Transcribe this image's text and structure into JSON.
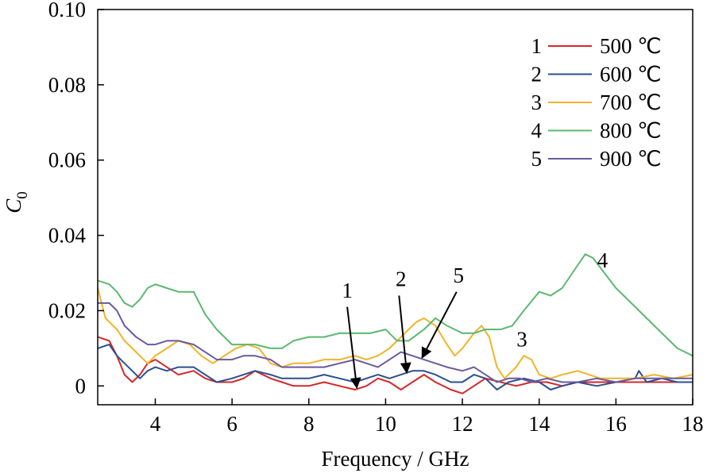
{
  "chart_data": {
    "type": "line",
    "title": "",
    "xlabel": "Frequency / GHz",
    "ylabel": "C0",
    "ylabel_main": "C",
    "ylabel_sub": "0",
    "xlim": [
      2.5,
      18
    ],
    "ylim": [
      -0.005,
      0.1
    ],
    "xticks": [
      4,
      6,
      8,
      10,
      12,
      14,
      16,
      18
    ],
    "xtick_labels": [
      "4",
      "6",
      "8",
      "10",
      "12",
      "14",
      "16",
      "18"
    ],
    "yticks": [
      0,
      0.02,
      0.04,
      0.06,
      0.08,
      0.1
    ],
    "ytick_labels": [
      "0",
      "0.02",
      "0.04",
      "0.06",
      "0.08",
      "0.10"
    ],
    "grid": false,
    "legend_position": "top-right",
    "series": [
      {
        "id": "1",
        "name": "500 ℃",
        "color": "#d62728",
        "points": [
          [
            2.5,
            0.013
          ],
          [
            2.8,
            0.012
          ],
          [
            3.0,
            0.008
          ],
          [
            3.2,
            0.003
          ],
          [
            3.4,
            0.001
          ],
          [
            3.6,
            0.003
          ],
          [
            3.8,
            0.006
          ],
          [
            4.0,
            0.007
          ],
          [
            4.3,
            0.005
          ],
          [
            4.6,
            0.003
          ],
          [
            5.0,
            0.004
          ],
          [
            5.3,
            0.002
          ],
          [
            5.6,
            0.001
          ],
          [
            6.0,
            0.001
          ],
          [
            6.3,
            0.002
          ],
          [
            6.6,
            0.004
          ],
          [
            7.0,
            0.002
          ],
          [
            7.3,
            0.001
          ],
          [
            7.6,
            0.0
          ],
          [
            8.0,
            0.0
          ],
          [
            8.4,
            0.001
          ],
          [
            8.8,
            0.0
          ],
          [
            9.2,
            -0.001
          ],
          [
            9.5,
            0.0
          ],
          [
            9.8,
            0.002
          ],
          [
            10.1,
            0.001
          ],
          [
            10.4,
            -0.001
          ],
          [
            10.7,
            0.001
          ],
          [
            11.0,
            0.003
          ],
          [
            11.3,
            0.001
          ],
          [
            11.7,
            -0.001
          ],
          [
            12.0,
            -0.002
          ],
          [
            12.3,
            0.0
          ],
          [
            12.6,
            0.002
          ],
          [
            13.0,
            0.001
          ],
          [
            13.4,
            0.0
          ],
          [
            13.8,
            0.001
          ],
          [
            14.2,
            0.001
          ],
          [
            14.6,
            0.0
          ],
          [
            15.0,
            0.001
          ],
          [
            15.5,
            0.001
          ],
          [
            16.0,
            0.001
          ],
          [
            16.5,
            0.001
          ],
          [
            17.0,
            0.001
          ],
          [
            17.5,
            0.001
          ],
          [
            18.0,
            0.001
          ]
        ]
      },
      {
        "id": "2",
        "name": "600 ℃",
        "color": "#2b4f8f",
        "points": [
          [
            2.5,
            0.01
          ],
          [
            2.8,
            0.011
          ],
          [
            3.0,
            0.008
          ],
          [
            3.2,
            0.006
          ],
          [
            3.4,
            0.004
          ],
          [
            3.6,
            0.002
          ],
          [
            3.8,
            0.004
          ],
          [
            4.0,
            0.005
          ],
          [
            4.3,
            0.004
          ],
          [
            4.6,
            0.005
          ],
          [
            5.0,
            0.005
          ],
          [
            5.3,
            0.003
          ],
          [
            5.6,
            0.001
          ],
          [
            6.0,
            0.002
          ],
          [
            6.3,
            0.003
          ],
          [
            6.6,
            0.004
          ],
          [
            7.0,
            0.003
          ],
          [
            7.3,
            0.002
          ],
          [
            7.6,
            0.002
          ],
          [
            8.0,
            0.002
          ],
          [
            8.4,
            0.003
          ],
          [
            8.8,
            0.002
          ],
          [
            9.2,
            0.001
          ],
          [
            9.5,
            0.002
          ],
          [
            9.8,
            0.003
          ],
          [
            10.1,
            0.002
          ],
          [
            10.4,
            0.003
          ],
          [
            10.7,
            0.004
          ],
          [
            11.0,
            0.004
          ],
          [
            11.3,
            0.003
          ],
          [
            11.7,
            0.001
          ],
          [
            12.0,
            0.001
          ],
          [
            12.3,
            0.003
          ],
          [
            12.6,
            0.002
          ],
          [
            12.9,
            -0.001
          ],
          [
            13.2,
            0.001
          ],
          [
            13.6,
            0.002
          ],
          [
            14.0,
            0.001
          ],
          [
            14.3,
            -0.001
          ],
          [
            14.6,
            0.0
          ],
          [
            15.0,
            0.001
          ],
          [
            15.5,
            0.0
          ],
          [
            16.0,
            0.001
          ],
          [
            16.5,
            0.002
          ],
          [
            16.6,
            0.004
          ],
          [
            16.8,
            0.001
          ],
          [
            17.2,
            0.002
          ],
          [
            17.6,
            0.001
          ],
          [
            18.0,
            0.001
          ]
        ]
      },
      {
        "id": "3",
        "name": "700 ℃",
        "color": "#f0b429",
        "points": [
          [
            2.5,
            0.026
          ],
          [
            2.7,
            0.018
          ],
          [
            3.0,
            0.015
          ],
          [
            3.2,
            0.012
          ],
          [
            3.5,
            0.009
          ],
          [
            3.8,
            0.006
          ],
          [
            4.0,
            0.008
          ],
          [
            4.3,
            0.01
          ],
          [
            4.6,
            0.012
          ],
          [
            4.9,
            0.011
          ],
          [
            5.2,
            0.008
          ],
          [
            5.5,
            0.006
          ],
          [
            5.8,
            0.008
          ],
          [
            6.1,
            0.01
          ],
          [
            6.4,
            0.011
          ],
          [
            6.7,
            0.01
          ],
          [
            7.0,
            0.006
          ],
          [
            7.3,
            0.005
          ],
          [
            7.6,
            0.006
          ],
          [
            8.0,
            0.006
          ],
          [
            8.4,
            0.007
          ],
          [
            8.8,
            0.007
          ],
          [
            9.2,
            0.008
          ],
          [
            9.5,
            0.007
          ],
          [
            9.8,
            0.008
          ],
          [
            10.1,
            0.01
          ],
          [
            10.5,
            0.014
          ],
          [
            10.8,
            0.017
          ],
          [
            11.0,
            0.018
          ],
          [
            11.3,
            0.016
          ],
          [
            11.6,
            0.011
          ],
          [
            11.8,
            0.008
          ],
          [
            12.0,
            0.01
          ],
          [
            12.3,
            0.014
          ],
          [
            12.5,
            0.016
          ],
          [
            12.7,
            0.013
          ],
          [
            12.9,
            0.005
          ],
          [
            13.1,
            0.002
          ],
          [
            13.4,
            0.005
          ],
          [
            13.6,
            0.008
          ],
          [
            13.8,
            0.007
          ],
          [
            14.0,
            0.003
          ],
          [
            14.3,
            0.002
          ],
          [
            14.6,
            0.003
          ],
          [
            15.0,
            0.004
          ],
          [
            15.3,
            0.003
          ],
          [
            15.6,
            0.002
          ],
          [
            16.0,
            0.002
          ],
          [
            16.5,
            0.002
          ],
          [
            17.0,
            0.003
          ],
          [
            17.5,
            0.002
          ],
          [
            18.0,
            0.003
          ]
        ]
      },
      {
        "id": "4",
        "name": "800 ℃",
        "color": "#5cb870",
        "points": [
          [
            2.5,
            0.028
          ],
          [
            2.8,
            0.027
          ],
          [
            3.0,
            0.025
          ],
          [
            3.2,
            0.022
          ],
          [
            3.4,
            0.021
          ],
          [
            3.6,
            0.023
          ],
          [
            3.8,
            0.026
          ],
          [
            4.0,
            0.027
          ],
          [
            4.3,
            0.026
          ],
          [
            4.6,
            0.025
          ],
          [
            5.0,
            0.025
          ],
          [
            5.3,
            0.019
          ],
          [
            5.6,
            0.015
          ],
          [
            6.0,
            0.011
          ],
          [
            6.3,
            0.011
          ],
          [
            6.6,
            0.011
          ],
          [
            7.0,
            0.01
          ],
          [
            7.3,
            0.01
          ],
          [
            7.6,
            0.012
          ],
          [
            8.0,
            0.013
          ],
          [
            8.4,
            0.013
          ],
          [
            8.8,
            0.014
          ],
          [
            9.2,
            0.014
          ],
          [
            9.6,
            0.014
          ],
          [
            10.0,
            0.015
          ],
          [
            10.3,
            0.012
          ],
          [
            10.6,
            0.012
          ],
          [
            11.0,
            0.015
          ],
          [
            11.3,
            0.018
          ],
          [
            11.6,
            0.016
          ],
          [
            12.0,
            0.014
          ],
          [
            12.3,
            0.014
          ],
          [
            12.6,
            0.015
          ],
          [
            13.0,
            0.015
          ],
          [
            13.3,
            0.016
          ],
          [
            13.6,
            0.02
          ],
          [
            14.0,
            0.025
          ],
          [
            14.3,
            0.024
          ],
          [
            14.6,
            0.026
          ],
          [
            15.0,
            0.032
          ],
          [
            15.2,
            0.035
          ],
          [
            15.4,
            0.034
          ],
          [
            15.7,
            0.03
          ],
          [
            16.0,
            0.026
          ],
          [
            16.4,
            0.022
          ],
          [
            16.8,
            0.018
          ],
          [
            17.2,
            0.014
          ],
          [
            17.6,
            0.01
          ],
          [
            18.0,
            0.008
          ]
        ]
      },
      {
        "id": "5",
        "name": "900 ℃",
        "color": "#6a5a9e",
        "points": [
          [
            2.5,
            0.022
          ],
          [
            2.8,
            0.022
          ],
          [
            3.0,
            0.02
          ],
          [
            3.2,
            0.016
          ],
          [
            3.5,
            0.013
          ],
          [
            3.8,
            0.011
          ],
          [
            4.0,
            0.011
          ],
          [
            4.3,
            0.012
          ],
          [
            4.6,
            0.012
          ],
          [
            5.0,
            0.011
          ],
          [
            5.3,
            0.009
          ],
          [
            5.6,
            0.007
          ],
          [
            6.0,
            0.007
          ],
          [
            6.3,
            0.008
          ],
          [
            6.6,
            0.008
          ],
          [
            7.0,
            0.007
          ],
          [
            7.3,
            0.005
          ],
          [
            7.6,
            0.005
          ],
          [
            8.0,
            0.005
          ],
          [
            8.4,
            0.005
          ],
          [
            8.8,
            0.006
          ],
          [
            9.2,
            0.007
          ],
          [
            9.5,
            0.006
          ],
          [
            9.8,
            0.005
          ],
          [
            10.1,
            0.007
          ],
          [
            10.4,
            0.009
          ],
          [
            10.7,
            0.008
          ],
          [
            11.0,
            0.007
          ],
          [
            11.3,
            0.006
          ],
          [
            11.6,
            0.005
          ],
          [
            12.0,
            0.004
          ],
          [
            12.3,
            0.005
          ],
          [
            12.6,
            0.003
          ],
          [
            12.9,
            0.001
          ],
          [
            13.2,
            0.002
          ],
          [
            13.5,
            0.002
          ],
          [
            13.8,
            0.001
          ],
          [
            14.2,
            0.002
          ],
          [
            14.6,
            0.001
          ],
          [
            15.0,
            0.001
          ],
          [
            15.5,
            0.002
          ],
          [
            16.0,
            0.001
          ],
          [
            16.5,
            0.002
          ],
          [
            17.0,
            0.002
          ],
          [
            17.5,
            0.002
          ],
          [
            18.0,
            0.002
          ]
        ]
      }
    ],
    "annotations": [
      {
        "text": "1",
        "label_at": [
          9.0,
          0.0235
        ],
        "arrow_from": [
          9.0,
          0.021
        ],
        "arrow_to": [
          9.25,
          -0.0005
        ]
      },
      {
        "text": "2",
        "label_at": [
          10.4,
          0.0265
        ],
        "arrow_from": [
          10.35,
          0.024
        ],
        "arrow_to": [
          10.55,
          0.0035
        ]
      },
      {
        "text": "5",
        "label_at": [
          11.9,
          0.0275
        ],
        "arrow_from": [
          11.85,
          0.025
        ],
        "arrow_to": [
          10.95,
          0.0075
        ]
      },
      {
        "text": "3",
        "label_at": [
          13.55,
          0.0105
        ],
        "arrow_from": null,
        "arrow_to": null
      },
      {
        "text": "4",
        "label_at": [
          15.65,
          0.0315
        ],
        "arrow_from": null,
        "arrow_to": null
      }
    ]
  }
}
